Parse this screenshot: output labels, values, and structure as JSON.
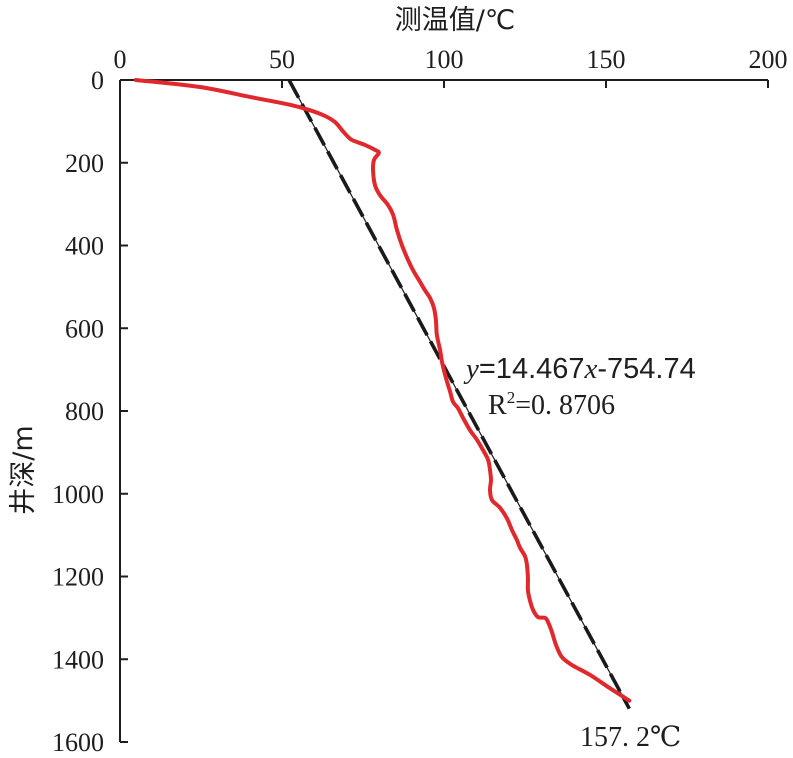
{
  "chart_data": {
    "type": "line",
    "xlabel": "测温值/℃",
    "ylabel": "井深/m",
    "x_axis_position": "top",
    "y_inverted": true,
    "xlim": [
      0,
      200
    ],
    "ylim": [
      0,
      1600
    ],
    "xticks": [
      0,
      50,
      100,
      150,
      200
    ],
    "yticks": [
      0,
      200,
      400,
      600,
      800,
      1000,
      1200,
      1400,
      1600
    ],
    "grid": false,
    "axis_color": "#1e1e1e",
    "series": [
      {
        "color": "#e0282d",
        "x": [
          4.9,
          24.7,
          40.1,
          52.5,
          58.6,
          63.3,
          66.4,
          68.5,
          70.1,
          71.6,
          75.6,
          78.7,
          79.9,
          78.4,
          78.1,
          78.7,
          80.2,
          82.7,
          84.3,
          85.5,
          87.0,
          88.9,
          90.4,
          92.6,
          94.1,
          95.7,
          96.9,
          97.5,
          97.8,
          98.8,
          99.4,
          100.6,
          101.9,
          102.8,
          104.3,
          105.9,
          108.0,
          110.2,
          112.0,
          113.6,
          114.2,
          114.5,
          114.2,
          114.8,
          117.3,
          119.4,
          121.0,
          122.5,
          123.5,
          125.0,
          125.6,
          125.9,
          125.9,
          126.5,
          127.5,
          129.0,
          131.2,
          132.1,
          133.3,
          134.6,
          136.4,
          139.5,
          145.1,
          151.2,
          157.2
        ],
        "y": [
          0,
          17,
          41,
          60,
          73,
          87,
          102,
          121,
          135,
          145,
          157,
          169,
          176,
          193,
          218,
          254,
          278,
          302,
          326,
          363,
          399,
          435,
          459,
          488,
          508,
          527,
          551,
          580,
          616,
          653,
          682,
          720,
          754,
          778,
          793,
          817,
          846,
          870,
          894,
          918,
          943,
          967,
          991,
          1015,
          1034,
          1059,
          1088,
          1112,
          1131,
          1151,
          1172,
          1204,
          1233,
          1257,
          1281,
          1298,
          1300,
          1310,
          1334,
          1366,
          1395,
          1414,
          1438,
          1470,
          1500
        ]
      }
    ],
    "fit": {
      "slope": 14.467,
      "intercept": -754.74,
      "x_range": [
        52.2,
        157.2
      ],
      "color": "#1a1a1a",
      "equation": {
        "y_var": "y",
        "part1": "=14.467",
        "x_var": "x",
        "part2": "-754.74"
      },
      "r2": {
        "symbol": "R",
        "sup": "2",
        "value": "=0. 8706"
      }
    },
    "end_label": "157. 2℃"
  }
}
